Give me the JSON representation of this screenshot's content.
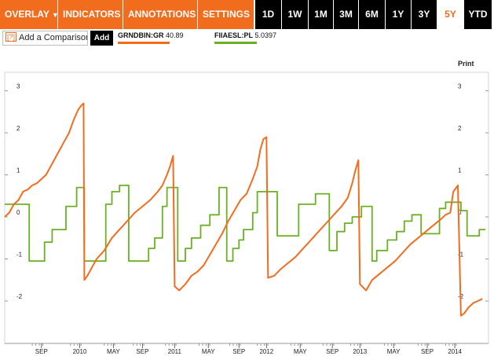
{
  "toolbar": {
    "menus": [
      {
        "label": "OVERLAY",
        "caret": "▼"
      },
      {
        "label": "INDICATORS",
        "caret": "▼"
      },
      {
        "label": "ANNOTATIONS",
        "caret": "▼"
      },
      {
        "label": "SETTINGS",
        "caret": "▼"
      }
    ],
    "ranges": [
      "1D",
      "1W",
      "1M",
      "3M",
      "6M",
      "1Y",
      "3Y",
      "5Y",
      "YTD"
    ],
    "active_range": "5Y"
  },
  "compare": {
    "icon": "[?]",
    "label": "Add a Comparison",
    "add_label": "Add"
  },
  "legend": [
    {
      "symbol": "GRNDBIN:GR",
      "value": "40.89",
      "color": "#f26c1e"
    },
    {
      "symbol": "FIIAESL:PL",
      "value": "5.0397",
      "color": "#6ab023"
    }
  ],
  "print_label": "Print",
  "colors": {
    "accent": "#f26c1e",
    "series2": "#6ab023"
  },
  "chart_data": {
    "type": "line",
    "x_tick_labels": [
      "SEP",
      "2010",
      "MAY",
      "SEP",
      "2011",
      "MAY",
      "SEP",
      "2012",
      "MAY",
      "SEP",
      "2013",
      "MAY",
      "SEP",
      "2014"
    ],
    "y_tick_labels": [
      "3",
      "2",
      "1",
      "0",
      "-1",
      "-2"
    ],
    "ylim": [
      -2.8,
      3.3
    ],
    "grid": false,
    "series": [
      {
        "name": "GRNDBIN:GR",
        "color": "#f26c1e",
        "points": [
          [
            0,
            0
          ],
          [
            3,
            0.1
          ],
          [
            6,
            0.3
          ],
          [
            9,
            0.4
          ],
          [
            12,
            0.6
          ],
          [
            15,
            0.65
          ],
          [
            18,
            0.75
          ],
          [
            21,
            0.8
          ],
          [
            24,
            0.9
          ],
          [
            27,
            1.0
          ],
          [
            30,
            1.2
          ],
          [
            33,
            1.4
          ],
          [
            36,
            1.6
          ],
          [
            39,
            1.8
          ],
          [
            42,
            2.0
          ],
          [
            45,
            2.3
          ],
          [
            48,
            2.55
          ],
          [
            50,
            2.65
          ],
          [
            51.5,
            2.7
          ],
          [
            52,
            -1.5
          ],
          [
            54,
            -1.4
          ],
          [
            57,
            -1.2
          ],
          [
            60,
            -1.0
          ],
          [
            65,
            -0.8
          ],
          [
            70,
            -0.5
          ],
          [
            75,
            -0.3
          ],
          [
            80,
            -0.1
          ],
          [
            85,
            0.1
          ],
          [
            90,
            0.25
          ],
          [
            95,
            0.4
          ],
          [
            100,
            0.6
          ],
          [
            103,
            0.75
          ],
          [
            106,
            1.0
          ],
          [
            108,
            1.2
          ],
          [
            110,
            1.45
          ],
          [
            111,
            -1.65
          ],
          [
            114,
            -1.75
          ],
          [
            118,
            -1.6
          ],
          [
            122,
            -1.4
          ],
          [
            126,
            -1.3
          ],
          [
            130,
            -1.15
          ],
          [
            134,
            -0.9
          ],
          [
            138,
            -0.65
          ],
          [
            142,
            -0.4
          ],
          [
            146,
            -0.1
          ],
          [
            150,
            0.15
          ],
          [
            154,
            0.4
          ],
          [
            158,
            0.55
          ],
          [
            162,
            0.9
          ],
          [
            165,
            1.2
          ],
          [
            167,
            1.6
          ],
          [
            169,
            1.85
          ],
          [
            171,
            1.9
          ],
          [
            172,
            -1.45
          ],
          [
            176,
            -1.4
          ],
          [
            180,
            -1.25
          ],
          [
            185,
            -1.1
          ],
          [
            190,
            -0.95
          ],
          [
            195,
            -0.75
          ],
          [
            200,
            -0.55
          ],
          [
            205,
            -0.35
          ],
          [
            210,
            -0.15
          ],
          [
            215,
            0.05
          ],
          [
            220,
            0.25
          ],
          [
            224,
            0.45
          ],
          [
            227,
            0.8
          ],
          [
            229,
            1.1
          ],
          [
            231,
            1.35
          ],
          [
            232,
            -1.6
          ],
          [
            236,
            -1.75
          ],
          [
            240,
            -1.5
          ],
          [
            245,
            -1.35
          ],
          [
            250,
            -1.2
          ],
          [
            255,
            -1.05
          ],
          [
            260,
            -0.85
          ],
          [
            265,
            -0.65
          ],
          [
            270,
            -0.5
          ],
          [
            275,
            -0.35
          ],
          [
            280,
            -0.2
          ],
          [
            285,
            -0.05
          ],
          [
            288,
            0.05
          ],
          [
            291,
            0.1
          ],
          [
            293,
            0.6
          ],
          [
            296,
            0.75
          ],
          [
            298,
            -2.35
          ],
          [
            300,
            -2.3
          ],
          [
            303,
            -2.15
          ],
          [
            306,
            -2.05
          ],
          [
            309,
            -2.0
          ],
          [
            312,
            -1.95
          ]
        ]
      },
      {
        "name": "FIIAESL:PL",
        "color": "#6ab023",
        "points": [
          [
            0,
            0.3
          ],
          [
            16,
            0.3
          ],
          [
            16,
            -1.05
          ],
          [
            26,
            -1.05
          ],
          [
            26,
            -0.6
          ],
          [
            31,
            -0.6
          ],
          [
            31,
            -0.3
          ],
          [
            40,
            -0.3
          ],
          [
            40,
            0.25
          ],
          [
            47,
            0.25
          ],
          [
            47,
            0.7
          ],
          [
            52,
            0.7
          ],
          [
            52,
            -1.05
          ],
          [
            66,
            -1.05
          ],
          [
            66,
            0.3
          ],
          [
            70,
            0.3
          ],
          [
            70,
            0.6
          ],
          [
            75,
            0.6
          ],
          [
            75,
            0.75
          ],
          [
            81,
            0.75
          ],
          [
            81,
            -1.05
          ],
          [
            94,
            -1.05
          ],
          [
            94,
            -0.75
          ],
          [
            98,
            -0.75
          ],
          [
            98,
            -0.5
          ],
          [
            103,
            -0.5
          ],
          [
            103,
            0.25
          ],
          [
            106,
            0.25
          ],
          [
            106,
            0.7
          ],
          [
            113,
            0.7
          ],
          [
            113,
            -1.05
          ],
          [
            118,
            -1.05
          ],
          [
            118,
            -0.75
          ],
          [
            122,
            -0.75
          ],
          [
            122,
            -0.5
          ],
          [
            128,
            -0.5
          ],
          [
            128,
            -0.2
          ],
          [
            134,
            -0.2
          ],
          [
            134,
            0.05
          ],
          [
            140,
            0.05
          ],
          [
            140,
            0.7
          ],
          [
            145,
            0.7
          ],
          [
            145,
            -1.05
          ],
          [
            149,
            -1.05
          ],
          [
            149,
            -0.75
          ],
          [
            153,
            -0.75
          ],
          [
            153,
            -0.55
          ],
          [
            156,
            -0.55
          ],
          [
            156,
            -0.3
          ],
          [
            162,
            -0.3
          ],
          [
            162,
            0.1
          ],
          [
            165,
            0.1
          ],
          [
            165,
            0.6
          ],
          [
            178,
            0.6
          ],
          [
            178,
            -0.45
          ],
          [
            192,
            -0.45
          ],
          [
            192,
            0.3
          ],
          [
            203,
            0.3
          ],
          [
            203,
            0.55
          ],
          [
            212,
            0.55
          ],
          [
            212,
            -0.8
          ],
          [
            217,
            -0.8
          ],
          [
            217,
            -0.35
          ],
          [
            222,
            -0.35
          ],
          [
            222,
            -0.15
          ],
          [
            227,
            -0.15
          ],
          [
            227,
            0.0
          ],
          [
            233,
            0.0
          ],
          [
            233,
            0.25
          ],
          [
            240,
            0.25
          ],
          [
            240,
            -1.05
          ],
          [
            243,
            -1.05
          ],
          [
            243,
            -0.8
          ],
          [
            250,
            -0.8
          ],
          [
            250,
            -0.55
          ],
          [
            256,
            -0.55
          ],
          [
            256,
            -0.35
          ],
          [
            261,
            -0.35
          ],
          [
            261,
            -0.1
          ],
          [
            266,
            -0.1
          ],
          [
            266,
            0.05
          ],
          [
            272,
            0.05
          ],
          [
            272,
            -0.4
          ],
          [
            284,
            -0.4
          ],
          [
            284,
            0.2
          ],
          [
            288,
            0.2
          ],
          [
            288,
            0.35
          ],
          [
            298,
            0.35
          ],
          [
            298,
            0.15
          ],
          [
            302,
            0.15
          ],
          [
            302,
            -0.45
          ],
          [
            310,
            -0.45
          ],
          [
            310,
            -0.3
          ],
          [
            314,
            -0.3
          ]
        ]
      }
    ]
  }
}
